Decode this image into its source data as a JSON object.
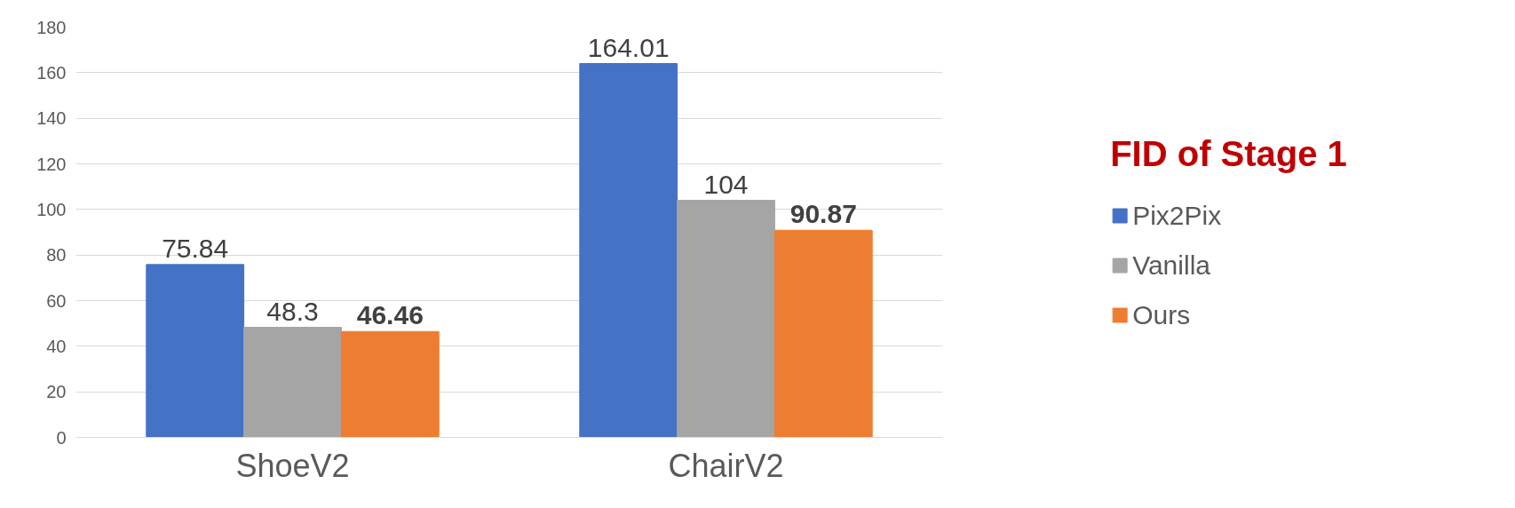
{
  "chart_data": {
    "type": "bar",
    "title": "FID of Stage 1",
    "categories": [
      "ShoeV2",
      "ChairV2"
    ],
    "series": [
      {
        "name": "Pix2Pix",
        "color": "#4472c4",
        "values": [
          75.84,
          164.01
        ]
      },
      {
        "name": "Vanilla",
        "color": "#a5a5a5",
        "values": [
          48.3,
          104
        ]
      },
      {
        "name": "Ours",
        "color": "#ed7d31",
        "values": [
          46.46,
          90.87
        ]
      }
    ],
    "ylim": [
      0,
      180
    ],
    "yticks": [
      0,
      20,
      40,
      60,
      80,
      100,
      120,
      140,
      160,
      180
    ],
    "grid": "y",
    "legend": "right",
    "data_labels": true
  }
}
